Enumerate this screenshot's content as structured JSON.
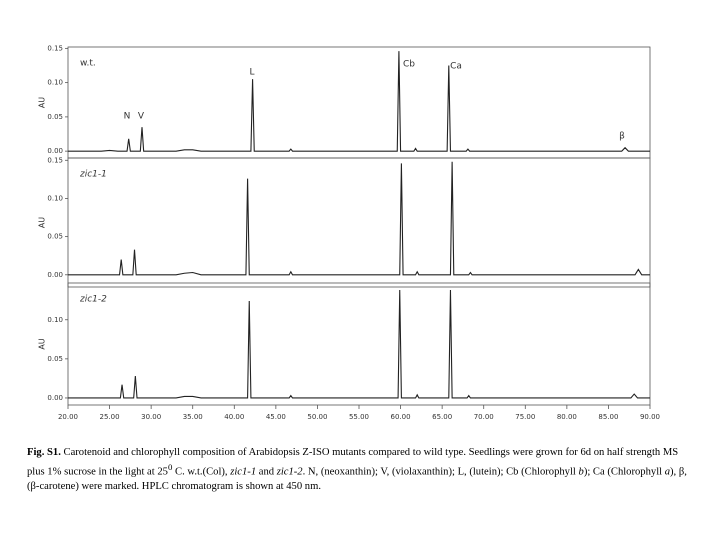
{
  "chart_data": [
    {
      "type": "line",
      "title": "w.t.",
      "y_label": "AU",
      "xlim": [
        20,
        90
      ],
      "ylim": [
        -0.01,
        0.152
      ],
      "yticks": [
        {
          "value": 0,
          "label": "0.00"
        },
        {
          "value": 0.05,
          "label": "0.05"
        },
        {
          "value": 0.1,
          "label": "0.10"
        },
        {
          "value": 0.15,
          "label": "0.15"
        }
      ],
      "annotations": [
        "N",
        "V",
        "L",
        "Cb",
        "Ca",
        "β"
      ],
      "series": [
        {
          "color": "#222222",
          "x": [
            20,
            24,
            25,
            26,
            27.1,
            27.3,
            27.5,
            28.7,
            28.9,
            29.1,
            33,
            34,
            35,
            36,
            42.0,
            42.2,
            42.4,
            46.6,
            46.8,
            47.0,
            59.6,
            59.8,
            60.0,
            61.6,
            61.8,
            62.0,
            65.6,
            65.8,
            66.0,
            67.9,
            68.1,
            68.3,
            86.6,
            87.0,
            87.4,
            90
          ],
          "values": [
            0,
            0,
            0.001,
            0,
            0,
            0.018,
            0,
            0,
            0.035,
            0,
            0,
            0.002,
            0.002,
            0,
            0,
            0.105,
            0,
            0,
            0.003,
            0,
            0,
            0.146,
            0,
            0,
            0.004,
            0,
            0,
            0.125,
            0,
            0,
            0.003,
            0,
            0,
            0.005,
            0,
            0
          ]
        }
      ]
    },
    {
      "type": "line",
      "title": "zic1-1",
      "y_label": "AU",
      "xlim": [
        20,
        90
      ],
      "ylim": [
        -0.016,
        0.153
      ],
      "yticks": [
        {
          "value": 0,
          "label": "0.00"
        },
        {
          "value": 0.05,
          "label": "0.05"
        },
        {
          "value": 0.1,
          "label": "0.10"
        },
        {
          "value": 0.15,
          "label": "0.15"
        }
      ],
      "series": [
        {
          "color": "#222222",
          "x": [
            20,
            25,
            26.2,
            26.4,
            26.6,
            27.8,
            28.0,
            28.2,
            33,
            34,
            35,
            36,
            41.4,
            41.6,
            41.8,
            46.6,
            46.8,
            47.0,
            59.9,
            60.1,
            60.3,
            61.8,
            62.0,
            62.2,
            66.0,
            66.2,
            66.4,
            68.2,
            68.4,
            68.6,
            88.2,
            88.6,
            89.0,
            90
          ],
          "values": [
            0,
            0,
            0,
            0.02,
            0,
            0,
            0.033,
            0,
            0,
            0.002,
            0.003,
            0,
            0,
            0.126,
            0,
            0,
            0.004,
            0,
            0,
            0.146,
            0,
            0,
            0.004,
            0,
            0,
            0.148,
            0,
            0,
            0.003,
            0,
            0,
            0.007,
            0,
            0
          ]
        }
      ]
    },
    {
      "type": "line",
      "title": "zic1-2",
      "y_label": "AU",
      "xlim": [
        20,
        90
      ],
      "ylim": [
        -0.009,
        0.147
      ],
      "yticks": [
        {
          "value": 0,
          "label": "0.00"
        },
        {
          "value": 0.05,
          "label": "0.05"
        },
        {
          "value": 0.1,
          "label": "0.10"
        }
      ],
      "xticks": [
        {
          "value": 20,
          "label": "20.00"
        },
        {
          "value": 25,
          "label": "25.00"
        },
        {
          "value": 30,
          "label": "30.00"
        },
        {
          "value": 35,
          "label": "35.00"
        },
        {
          "value": 40,
          "label": "40.00"
        },
        {
          "value": 45,
          "label": "45.00"
        },
        {
          "value": 50,
          "label": "50.00"
        },
        {
          "value": 55,
          "label": "55.00"
        },
        {
          "value": 60,
          "label": "60.00"
        },
        {
          "value": 65,
          "label": "65.00"
        },
        {
          "value": 70,
          "label": "70.00"
        },
        {
          "value": 75,
          "label": "75.00"
        },
        {
          "value": 80,
          "label": "80.00"
        },
        {
          "value": 85,
          "label": "85.00"
        },
        {
          "value": 90,
          "label": "90.00"
        }
      ],
      "series": [
        {
          "color": "#222222",
          "x": [
            20,
            25,
            26.3,
            26.5,
            26.7,
            27.9,
            28.1,
            28.3,
            33,
            34,
            35,
            36,
            41.6,
            41.8,
            42.0,
            46.6,
            46.8,
            47.0,
            59.7,
            59.9,
            60.1,
            61.8,
            62.0,
            62.2,
            65.8,
            66.0,
            66.2,
            68.0,
            68.2,
            68.4,
            87.7,
            88.1,
            88.5,
            90
          ],
          "values": [
            0,
            0,
            0,
            0.017,
            0,
            0,
            0.028,
            0,
            0,
            0.002,
            0.002,
            0,
            0,
            0.124,
            0,
            0,
            0.003,
            0,
            0,
            0.138,
            0,
            0,
            0.004,
            0,
            0,
            0.138,
            0,
            0,
            0.003,
            0,
            0,
            0.005,
            0,
            0
          ]
        }
      ]
    }
  ],
  "caption": {
    "label": "Fig. S1.",
    "parts": [
      " Carotenoid and chlorophyll composition of Arabidopsis Z-ISO mutants compared to wild type. Seedlings were grown for 6d on half strength MS plus 1% sucrose in the light at 25",
      "0",
      " C.  w.t.(Col), ",
      "zic1-1",
      " and ",
      "zic1-2",
      ". N, (neoxanthin); V, (violaxanthin); L, (lutein); Cb (Chlorophyll ",
      "b",
      "); Ca (Chlorophyll ",
      "a",
      "), β, (β-carotene) were marked.  HPLC chromatogram is shown at 450 nm."
    ]
  }
}
